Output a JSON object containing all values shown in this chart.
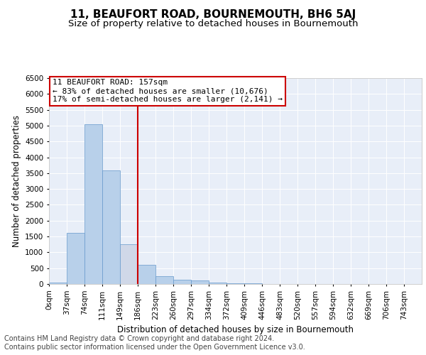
{
  "title": "11, BEAUFORT ROAD, BOURNEMOUTH, BH6 5AJ",
  "subtitle": "Size of property relative to detached houses in Bournemouth",
  "xlabel": "Distribution of detached houses by size in Bournemouth",
  "ylabel": "Number of detached properties",
  "footer_line1": "Contains HM Land Registry data © Crown copyright and database right 2024.",
  "footer_line2": "Contains public sector information licensed under the Open Government Licence v3.0.",
  "bin_labels": [
    "0sqm",
    "37sqm",
    "74sqm",
    "111sqm",
    "149sqm",
    "186sqm",
    "223sqm",
    "260sqm",
    "297sqm",
    "334sqm",
    "372sqm",
    "409sqm",
    "446sqm",
    "483sqm",
    "520sqm",
    "557sqm",
    "594sqm",
    "632sqm",
    "669sqm",
    "706sqm",
    "743sqm"
  ],
  "bar_values": [
    50,
    1620,
    5050,
    3580,
    1260,
    600,
    250,
    135,
    105,
    55,
    25,
    15,
    8,
    5,
    3,
    2,
    1,
    1,
    1,
    1,
    0
  ],
  "bar_color": "#b8d0ea",
  "bar_edge_color": "#6699cc",
  "highlight_bar_index": 4,
  "highlight_bar_color": "#d0d8e8",
  "vline_color": "#cc0000",
  "vline_position": 5.0,
  "annotation_text": "11 BEAUFORT ROAD: 157sqm\n← 83% of detached houses are smaller (10,676)\n17% of semi-detached houses are larger (2,141) →",
  "annotation_box_color": "#cc0000",
  "annotation_text_color": "#000000",
  "ylim": [
    0,
    6500
  ],
  "yticks": [
    0,
    500,
    1000,
    1500,
    2000,
    2500,
    3000,
    3500,
    4000,
    4500,
    5000,
    5500,
    6000,
    6500
  ],
  "bg_color": "#ffffff",
  "plot_bg_color": "#e8eef8",
  "grid_color": "#ffffff",
  "title_fontsize": 11,
  "subtitle_fontsize": 9.5,
  "axis_label_fontsize": 8.5,
  "tick_fontsize": 7.5,
  "annotation_fontsize": 8,
  "footer_fontsize": 7
}
